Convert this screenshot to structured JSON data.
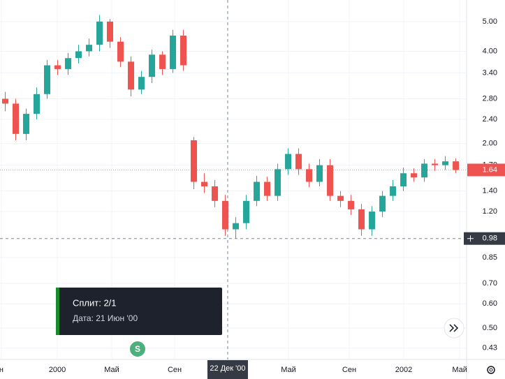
{
  "chart_data": {
    "type": "candlestick",
    "log_scale": true,
    "grid": true,
    "up_color": "#26a69a",
    "down_color": "#ef5350",
    "x": [
      0,
      1,
      2,
      3,
      4,
      5,
      6,
      7,
      8,
      9,
      10,
      11,
      12,
      13,
      14,
      15,
      16,
      17,
      18,
      19,
      20,
      21,
      22,
      23,
      24,
      25,
      26,
      27,
      28,
      29,
      30,
      31,
      32,
      33,
      34,
      35,
      36,
      37,
      38,
      39,
      40,
      41,
      42,
      43
    ],
    "open": [
      2.8,
      2.7,
      2.15,
      2.5,
      2.9,
      3.6,
      3.5,
      3.8,
      4.0,
      4.2,
      5.0,
      4.3,
      3.7,
      3.0,
      3.3,
      3.9,
      3.5,
      4.5,
      2.05,
      1.5,
      1.45,
      1.3,
      1.05,
      1.1,
      1.3,
      1.5,
      1.35,
      1.65,
      1.85,
      1.65,
      1.5,
      1.7,
      1.35,
      1.3,
      1.22,
      1.05,
      1.2,
      1.35,
      1.45,
      1.6,
      1.55,
      1.72,
      1.7,
      1.75
    ],
    "high": [
      2.95,
      2.8,
      2.6,
      3.05,
      3.75,
      3.75,
      3.95,
      4.2,
      4.4,
      5.25,
      5.1,
      4.45,
      3.85,
      3.45,
      4.05,
      4.0,
      4.7,
      4.7,
      2.1,
      1.6,
      1.52,
      1.36,
      1.15,
      1.36,
      1.57,
      1.56,
      1.72,
      1.93,
      1.93,
      1.72,
      1.78,
      1.78,
      1.4,
      1.36,
      1.27,
      1.25,
      1.4,
      1.52,
      1.67,
      1.66,
      1.78,
      1.78,
      1.82,
      1.79
    ],
    "low": [
      2.55,
      2.05,
      2.05,
      2.4,
      2.8,
      3.35,
      3.35,
      3.65,
      3.85,
      4.0,
      4.1,
      3.55,
      2.85,
      2.9,
      3.15,
      3.35,
      3.4,
      3.45,
      1.42,
      1.38,
      1.24,
      1.0,
      0.98,
      1.05,
      1.25,
      1.3,
      1.3,
      1.58,
      1.58,
      1.44,
      1.45,
      1.3,
      1.24,
      1.17,
      1.0,
      1.0,
      1.15,
      1.3,
      1.4,
      1.5,
      1.5,
      1.63,
      1.64,
      1.6
    ],
    "close": [
      2.7,
      2.15,
      2.5,
      2.9,
      3.6,
      3.5,
      3.8,
      4.0,
      4.2,
      5.0,
      4.3,
      3.7,
      3.0,
      3.3,
      3.9,
      3.5,
      4.5,
      3.6,
      1.5,
      1.45,
      1.3,
      1.05,
      1.1,
      1.3,
      1.5,
      1.35,
      1.65,
      1.85,
      1.65,
      1.5,
      1.7,
      1.35,
      1.3,
      1.22,
      1.05,
      1.2,
      1.35,
      1.45,
      1.6,
      1.55,
      1.72,
      1.7,
      1.75,
      1.64
    ],
    "xlim": [
      -0.5,
      44.03
    ],
    "xticks": [
      {
        "value": -0.37,
        "label": "н"
      },
      {
        "value": 4.97,
        "label": "2000"
      },
      {
        "value": 10.17,
        "label": "Май"
      },
      {
        "value": 16.17,
        "label": "Сен"
      },
      {
        "value": 27.03,
        "label": "Май"
      },
      {
        "value": 32.83,
        "label": "Сен"
      },
      {
        "value": 38.03,
        "label": "2002"
      },
      {
        "value": 43.37,
        "label": "Май"
      }
    ],
    "ylim": [
      0.395,
      5.88
    ],
    "yticks": [
      {
        "value": 5,
        "label": "5.00"
      },
      {
        "value": 4,
        "label": "4.00"
      },
      {
        "value": 3.4,
        "label": "3.40"
      },
      {
        "value": 2.8,
        "label": "2.80"
      },
      {
        "value": 2.4,
        "label": "2.40"
      },
      {
        "value": 2,
        "label": "2.00"
      },
      {
        "value": 1.7,
        "label": "1.70"
      },
      {
        "value": 1.4,
        "label": "1.40"
      },
      {
        "value": 1.2,
        "label": "1.20"
      },
      {
        "value": 0.85,
        "label": "0.85"
      },
      {
        "value": 0.7,
        "label": "0.70"
      },
      {
        "value": 0.6,
        "label": "0.60"
      },
      {
        "value": 0.5,
        "label": "0.50"
      },
      {
        "value": 0.43,
        "label": "0.43"
      }
    ],
    "last_price": {
      "value": 1.64,
      "label": "1.64"
    },
    "crosshair": {
      "x": {
        "value": 21.23,
        "label": "22 Дек '00"
      },
      "y": {
        "value": 0.98,
        "label": "0.98"
      }
    },
    "split": {
      "x": 12.63,
      "icon": "S",
      "title": "Сплит: 2/1",
      "date": "Дата: 21 Июн '00"
    }
  }
}
